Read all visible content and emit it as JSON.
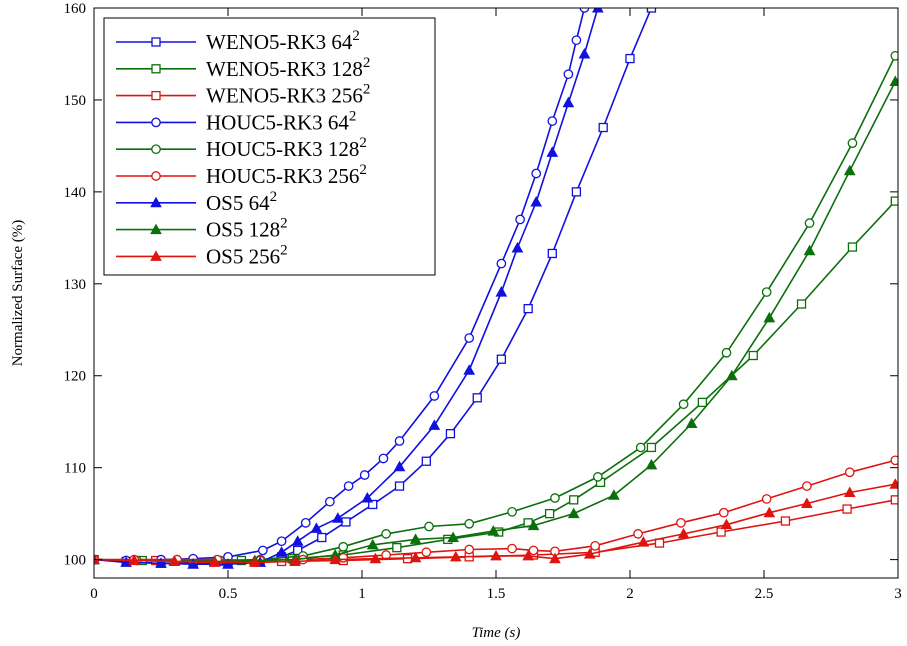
{
  "chart_data": {
    "type": "line",
    "xlabel": "Time (s)",
    "ylabel": "Normalized Surface (%)",
    "xlim": [
      0,
      3
    ],
    "ylim": [
      98,
      160
    ],
    "xticks": [
      {
        "value": 0,
        "label": "0"
      },
      {
        "value": 0.5,
        "label": "0.5"
      },
      {
        "value": 1,
        "label": "1"
      },
      {
        "value": 1.5,
        "label": "1.5"
      },
      {
        "value": 2,
        "label": "2"
      },
      {
        "value": 2.5,
        "label": "2.5"
      },
      {
        "value": 3,
        "label": "3"
      }
    ],
    "yticks": [
      {
        "value": 100,
        "label": "100"
      },
      {
        "value": 110,
        "label": "110"
      },
      {
        "value": 120,
        "label": "120"
      },
      {
        "value": 130,
        "label": "130"
      },
      {
        "value": 140,
        "label": "140"
      },
      {
        "value": 150,
        "label": "150"
      },
      {
        "value": 160,
        "label": "160"
      }
    ],
    "grid": false,
    "legend_position": "top-left",
    "series": [
      {
        "name": "WENO5-RK3 64",
        "sup": "2",
        "color": "#1010e0",
        "marker": "square",
        "x": [
          0,
          0.12,
          0.25,
          0.37,
          0.5,
          0.62,
          0.7,
          0.76,
          0.85,
          0.94,
          1.04,
          1.14,
          1.24,
          1.33,
          1.43,
          1.52,
          1.62,
          1.71,
          1.8,
          1.9,
          2.0,
          2.08
        ],
        "y": [
          100,
          99.8,
          99.6,
          99.6,
          99.6,
          99.8,
          100.3,
          101,
          102.4,
          104.1,
          106,
          108,
          110.7,
          113.7,
          117.6,
          121.8,
          127.3,
          133.3,
          140,
          147,
          154.5,
          160
        ]
      },
      {
        "name": "WENO5-RK3 128",
        "sup": "2",
        "color": "#0b700b",
        "marker": "square",
        "x": [
          0,
          0.18,
          0.37,
          0.55,
          0.74,
          0.93,
          1.13,
          1.32,
          1.51,
          1.62,
          1.7,
          1.79,
          1.89,
          2.08,
          2.27,
          2.46,
          2.64,
          2.83,
          2.99
        ],
        "y": [
          100,
          99.9,
          99.8,
          99.9,
          100.1,
          100.5,
          101.3,
          102.2,
          103,
          104,
          105,
          106.5,
          108.4,
          112.2,
          117.1,
          122.2,
          127.8,
          134,
          139
        ]
      },
      {
        "name": "WENO5-RK3 256",
        "sup": "2",
        "color": "#e0140f",
        "marker": "square",
        "x": [
          0,
          0.23,
          0.47,
          0.7,
          0.93,
          1.17,
          1.4,
          1.64,
          1.87,
          2.11,
          2.34,
          2.58,
          2.81,
          2.99
        ],
        "y": [
          100,
          99.9,
          99.8,
          99.8,
          99.9,
          100.1,
          100.3,
          100.5,
          100.8,
          101.8,
          103,
          104.2,
          105.5,
          106.5
        ]
      },
      {
        "name": "HOUC5-RK3 64",
        "sup": "2",
        "color": "#1010e0",
        "marker": "circle",
        "x": [
          0,
          0.12,
          0.25,
          0.37,
          0.5,
          0.63,
          0.7,
          0.79,
          0.88,
          0.95,
          1.01,
          1.08,
          1.14,
          1.27,
          1.4,
          1.52,
          1.59,
          1.65,
          1.71,
          1.77,
          1.8,
          1.83
        ],
        "y": [
          100,
          99.9,
          100,
          100.1,
          100.3,
          101,
          102,
          104,
          106.3,
          108,
          109.2,
          111,
          112.9,
          117.8,
          124.1,
          132.2,
          137,
          142,
          147.7,
          152.8,
          156.5,
          160
        ]
      },
      {
        "name": "HOUC5-RK3 128",
        "sup": "2",
        "color": "#0b700b",
        "marker": "circle",
        "x": [
          0,
          0.16,
          0.31,
          0.47,
          0.62,
          0.78,
          0.93,
          1.09,
          1.25,
          1.4,
          1.56,
          1.72,
          1.88,
          2.04,
          2.2,
          2.36,
          2.51,
          2.67,
          2.83,
          2.99
        ],
        "y": [
          100,
          99.9,
          99.9,
          99.9,
          100,
          100.4,
          101.4,
          102.8,
          103.6,
          103.9,
          105.2,
          106.7,
          109,
          112.2,
          116.9,
          122.5,
          129.1,
          136.6,
          145.3,
          154.8
        ]
      },
      {
        "name": "HOUC5-RK3 256",
        "sup": "2",
        "color": "#e0140f",
        "marker": "circle",
        "x": [
          0,
          0.15,
          0.31,
          0.46,
          0.62,
          0.78,
          0.93,
          1.09,
          1.24,
          1.4,
          1.56,
          1.64,
          1.72,
          1.87,
          2.03,
          2.19,
          2.35,
          2.51,
          2.66,
          2.82,
          2.99
        ],
        "y": [
          100,
          100,
          100,
          100,
          99.9,
          100,
          100.2,
          100.5,
          100.8,
          101.1,
          101.2,
          101,
          100.9,
          101.5,
          102.8,
          104,
          105.1,
          106.6,
          108,
          109.5,
          110.8
        ]
      },
      {
        "name": "OS5 64",
        "sup": "2",
        "color": "#1010e0",
        "marker": "triangle",
        "x": [
          0,
          0.12,
          0.25,
          0.37,
          0.5,
          0.62,
          0.7,
          0.76,
          0.83,
          0.91,
          1.02,
          1.14,
          1.27,
          1.4,
          1.52,
          1.58,
          1.65,
          1.71,
          1.77,
          1.83,
          1.88
        ],
        "y": [
          100,
          99.7,
          99.6,
          99.5,
          99.5,
          99.7,
          100.8,
          102,
          103.4,
          104.5,
          106.7,
          110.1,
          114.6,
          120.6,
          129.1,
          133.9,
          138.9,
          144.3,
          149.7,
          155,
          160
        ]
      },
      {
        "name": "OS5 128",
        "sup": "2",
        "color": "#0b700b",
        "marker": "triangle",
        "x": [
          0,
          0.15,
          0.3,
          0.45,
          0.6,
          0.75,
          0.9,
          1.04,
          1.2,
          1.34,
          1.49,
          1.64,
          1.79,
          1.94,
          2.08,
          2.23,
          2.38,
          2.52,
          2.67,
          2.82,
          2.99
        ],
        "y": [
          100,
          99.9,
          99.8,
          99.8,
          99.9,
          100,
          100.5,
          101.6,
          102.2,
          102.4,
          103.1,
          103.7,
          105,
          107,
          110.3,
          114.8,
          120,
          126.3,
          133.6,
          142.3,
          152
        ]
      },
      {
        "name": "OS5 256",
        "sup": "2",
        "color": "#e0140f",
        "marker": "triangle",
        "x": [
          0,
          0.15,
          0.3,
          0.45,
          0.6,
          0.75,
          0.9,
          1.05,
          1.2,
          1.35,
          1.5,
          1.62,
          1.72,
          1.85,
          2.05,
          2.2,
          2.36,
          2.52,
          2.66,
          2.82,
          2.99
        ],
        "y": [
          100,
          99.9,
          99.8,
          99.7,
          99.7,
          99.8,
          100,
          100.1,
          100.2,
          100.3,
          100.4,
          100.4,
          100.1,
          100.6,
          101.9,
          102.8,
          103.8,
          105.1,
          106.1,
          107.3,
          108.2
        ]
      }
    ]
  }
}
